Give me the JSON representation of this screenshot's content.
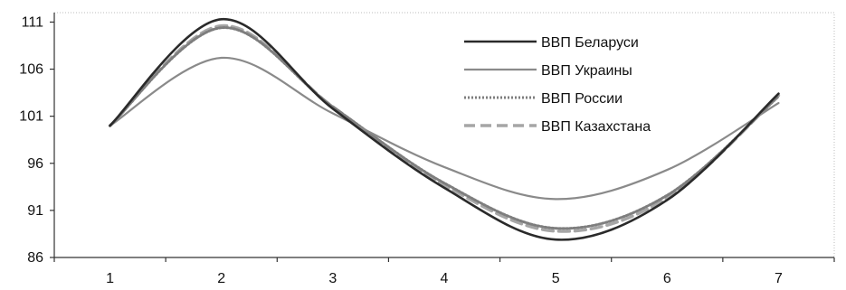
{
  "chart_data": {
    "type": "line",
    "title": "",
    "xlabel": "",
    "ylabel": "",
    "x": [
      1,
      2,
      3,
      4,
      5,
      6,
      7
    ],
    "ylim": [
      86,
      112
    ],
    "yticks": [
      86,
      91,
      96,
      101,
      106,
      111
    ],
    "grid": false,
    "legend_position": "top-right",
    "series": [
      {
        "name": "ВВП Беларуси",
        "values": [
          100,
          111.3,
          101.8,
          93.4,
          87.9,
          92.1,
          103.4
        ],
        "color": "#2a2a2a",
        "style": "solid"
      },
      {
        "name": "ВВП Украины",
        "values": [
          100,
          107.2,
          101.3,
          95.6,
          92.2,
          95.3,
          102.4
        ],
        "color": "#8a8a8a",
        "style": "solid"
      },
      {
        "name": "ВВП России",
        "values": [
          100,
          110.4,
          102.0,
          93.9,
          89.1,
          92.6,
          103.1
        ],
        "color": "#7e7e7e",
        "style": "dotted"
      },
      {
        "name": "ВВП Казахстана",
        "values": [
          100,
          110.6,
          102.0,
          93.7,
          88.8,
          92.3,
          103.2
        ],
        "color": "#a6a6a6",
        "style": "dashed"
      }
    ]
  }
}
